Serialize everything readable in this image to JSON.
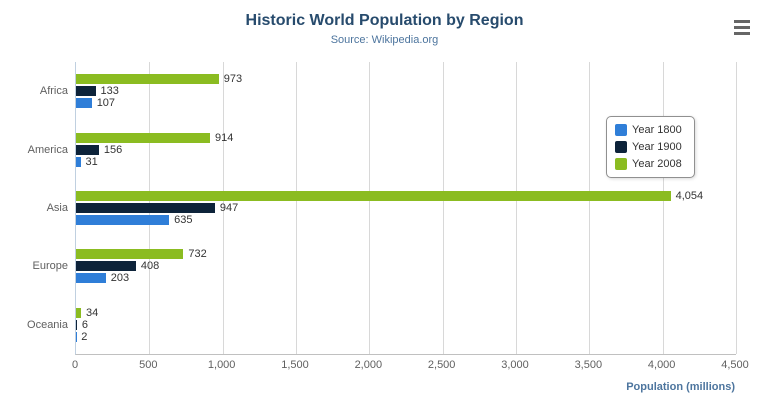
{
  "chart": {
    "title": "Historic World Population by Region",
    "subtitle": "Source: Wikipedia.org",
    "xaxis_title": "Population (millions)"
  },
  "chart_data": {
    "type": "bar",
    "orientation": "horizontal",
    "title": "Historic World Population by Region",
    "subtitle": "Source: Wikipedia.org",
    "xlabel": "Population (millions)",
    "categories": [
      "Africa",
      "America",
      "Asia",
      "Europe",
      "Oceania"
    ],
    "series": [
      {
        "name": "Year 1800",
        "color": "#2f7ed8",
        "values": [
          107,
          31,
          635,
          203,
          2
        ]
      },
      {
        "name": "Year 1900",
        "color": "#0d233a",
        "values": [
          133,
          156,
          947,
          408,
          6
        ]
      },
      {
        "name": "Year 2008",
        "color": "#8bbc21",
        "values": [
          973,
          914,
          4054,
          732,
          34
        ]
      }
    ],
    "visual_order_top_to_bottom": [
      "Year 2008",
      "Year 1900",
      "Year 1800"
    ],
    "xlim": [
      0,
      4500
    ],
    "tick_interval": 500,
    "tick_labels": [
      "0",
      "500",
      "1,000",
      "1,500",
      "2,000",
      "2,500",
      "3,000",
      "3,500",
      "4,000",
      "4,500"
    ],
    "grid": true,
    "legend_position": "right",
    "data_labels": true
  },
  "icons": {
    "menu": "hamburger-icon"
  }
}
